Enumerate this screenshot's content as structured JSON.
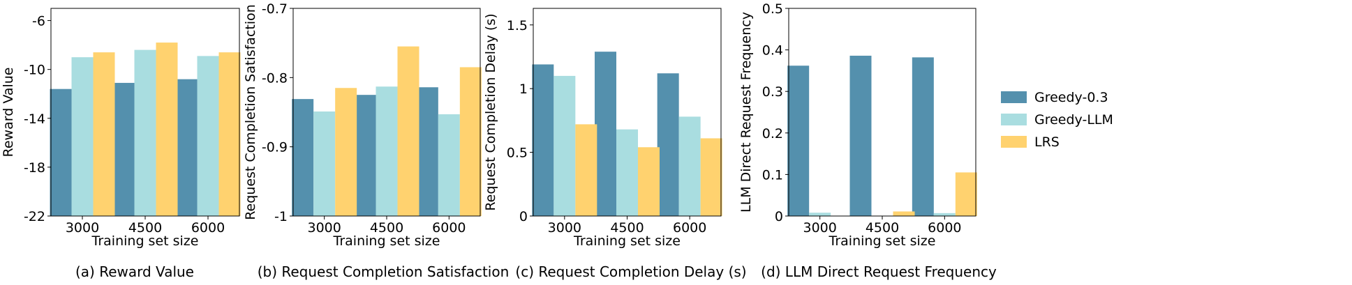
{
  "legend": {
    "placement": "right",
    "entries": [
      {
        "name": "Greedy-0.3",
        "color": "#5490ad"
      },
      {
        "name": "Greedy-LLM",
        "color": "#a9dde0"
      },
      {
        "name": "LRS",
        "color": "#ffd26f"
      }
    ]
  },
  "chart_data": [
    {
      "type": "bar",
      "caption": "(a) Reward Value",
      "xlabel": "Training set size",
      "ylabel": "Reward Value",
      "categories": [
        "3000",
        "4500",
        "6000"
      ],
      "ylim": [
        -22,
        -5
      ],
      "yticks": [
        -22,
        -18,
        -14,
        -10,
        -6
      ],
      "ytick_labels": [
        "-22",
        "-18",
        "-14",
        "-10",
        "-6"
      ],
      "grid": false,
      "series": [
        {
          "name": "Greedy-0.3",
          "values": [
            -11.6,
            -11.1,
            -10.8
          ]
        },
        {
          "name": "Greedy-LLM",
          "values": [
            -9.0,
            -8.4,
            -8.9
          ]
        },
        {
          "name": "LRS",
          "values": [
            -8.6,
            -7.8,
            -8.6
          ]
        }
      ]
    },
    {
      "type": "bar",
      "caption": "(b) Request Completion Satisfaction",
      "xlabel": "Training set size",
      "ylabel": "Request Completion Satisfaction",
      "categories": [
        "3000",
        "4500",
        "6000"
      ],
      "ylim": [
        -1.0,
        -0.7
      ],
      "yticks": [
        -1.0,
        -0.9,
        -0.8,
        -0.7
      ],
      "ytick_labels": [
        "-1",
        "-0.9",
        "-0.8",
        "-0.7"
      ],
      "grid": false,
      "series": [
        {
          "name": "Greedy-0.3",
          "values": [
            -0.831,
            -0.825,
            -0.814
          ]
        },
        {
          "name": "Greedy-LLM",
          "values": [
            -0.849,
            -0.813,
            -0.853
          ]
        },
        {
          "name": "LRS",
          "values": [
            -0.815,
            -0.755,
            -0.785
          ]
        }
      ]
    },
    {
      "type": "bar",
      "caption": "(c) Request Completion Delay (s)",
      "xlabel": "Training set size",
      "ylabel": "Request Completion Delay (s)",
      "categories": [
        "3000",
        "4500",
        "6000"
      ],
      "ylim": [
        0,
        1.63
      ],
      "yticks": [
        0,
        0.5,
        1,
        1.5
      ],
      "ytick_labels": [
        "0",
        "0.5",
        "1",
        "1.5"
      ],
      "grid": false,
      "series": [
        {
          "name": "Greedy-0.3",
          "values": [
            1.19,
            1.29,
            1.12
          ]
        },
        {
          "name": "Greedy-LLM",
          "values": [
            1.1,
            0.68,
            0.78
          ]
        },
        {
          "name": "LRS",
          "values": [
            0.72,
            0.54,
            0.61
          ]
        }
      ]
    },
    {
      "type": "bar",
      "caption": "(d) LLM Direct Request Frequency",
      "xlabel": "Training set size",
      "ylabel": "LLM Direct Request Frequency",
      "categories": [
        "3000",
        "4500",
        "6000"
      ],
      "ylim": [
        0,
        0.5
      ],
      "yticks": [
        0,
        0.1,
        0.2,
        0.3,
        0.4,
        0.5
      ],
      "ytick_labels": [
        "0",
        "0.1",
        "0.2",
        "0.3",
        "0.4",
        "0.5"
      ],
      "grid": false,
      "series": [
        {
          "name": "Greedy-0.3",
          "values": [
            0.362,
            0.386,
            0.382
          ]
        },
        {
          "name": "Greedy-LLM",
          "values": [
            0.008,
            0.0,
            0.007
          ]
        },
        {
          "name": "LRS",
          "values": [
            0.0,
            0.011,
            0.105
          ]
        }
      ]
    }
  ]
}
